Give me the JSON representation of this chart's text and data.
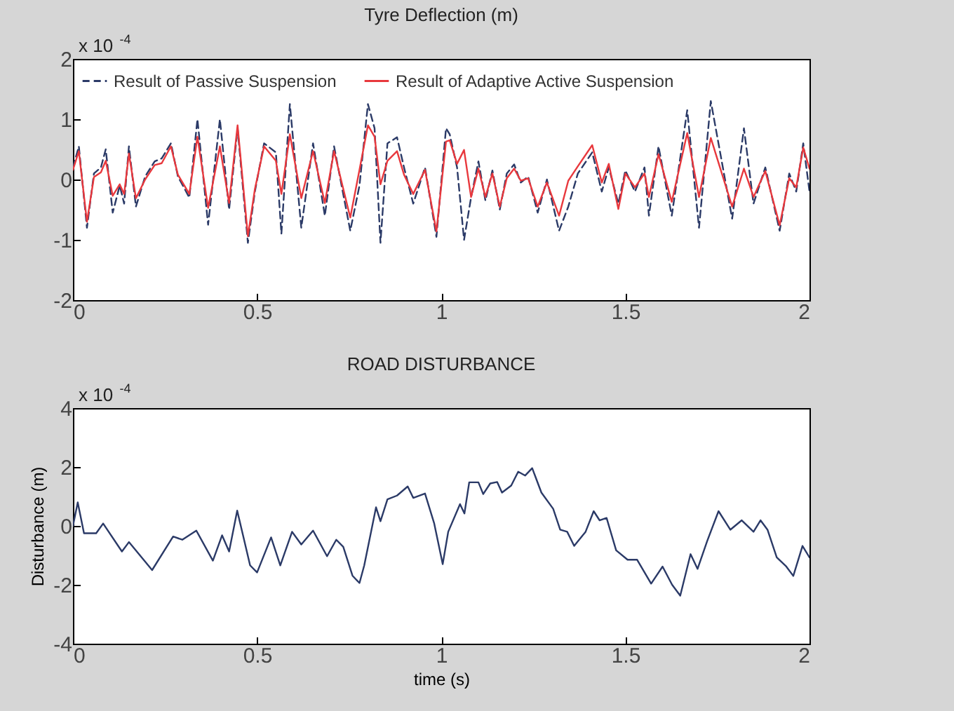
{
  "chart_data": [
    {
      "type": "line",
      "title": "Tyre Deflection (m)",
      "annotations": [
        "x 10$^{-4}$"
      ],
      "xlim": [
        0,
        2
      ],
      "xticks": [
        0,
        0.5,
        1,
        1.5,
        2
      ],
      "ylim": [
        -2,
        2
      ],
      "yticks": [
        -2,
        -1,
        0,
        1,
        2
      ],
      "grid": false,
      "legend": "top left",
      "x": [
        0,
        0.016,
        0.038,
        0.057,
        0.076,
        0.089,
        0.108,
        0.127,
        0.139,
        0.152,
        0.171,
        0.196,
        0.222,
        0.241,
        0.266,
        0.285,
        0.316,
        0.338,
        0.367,
        0.399,
        0.424,
        0.447,
        0.475,
        0.494,
        0.519,
        0.551,
        0.566,
        0.589,
        0.62,
        0.652,
        0.684,
        0.709,
        0.753,
        0.778,
        0.801,
        0.819,
        0.835,
        0.854,
        0.88,
        0.899,
        0.924,
        0.956,
        0.987,
        1.013,
        1.023,
        1.043,
        1.062,
        1.081,
        1.101,
        1.12,
        1.139,
        1.159,
        1.178,
        1.198,
        1.216,
        1.236,
        1.262,
        1.287,
        1.32,
        1.345,
        1.371,
        1.41,
        1.436,
        1.455,
        1.481,
        1.5,
        1.526,
        1.552,
        1.564,
        1.59,
        1.626,
        1.668,
        1.7,
        1.732,
        1.79,
        1.822,
        1.848,
        1.88,
        1.919,
        1.945,
        1.964,
        1.983,
        2.0
      ],
      "series": [
        {
          "name": "Result of Passive Suspension",
          "color": "#2b3a67",
          "line_style": "dashed",
          "values": [
            0.2,
            0.55,
            -0.8,
            0.1,
            0.2,
            0.5,
            -0.55,
            -0.1,
            -0.4,
            0.55,
            -0.45,
            0.05,
            0.3,
            0.35,
            0.6,
            0.05,
            -0.3,
            1.0,
            -0.75,
            1.0,
            -0.5,
            0.85,
            -1.05,
            -0.2,
            0.6,
            0.45,
            -0.9,
            1.25,
            -0.8,
            0.6,
            -0.6,
            0.55,
            -0.85,
            -0.1,
            1.25,
            0.85,
            -1.05,
            0.6,
            0.7,
            0.2,
            -0.4,
            0.2,
            -0.95,
            0.85,
            0.75,
            0.2,
            -1.0,
            -0.3,
            0.3,
            -0.35,
            0.15,
            -0.5,
            0.1,
            0.25,
            -0.05,
            0.05,
            -0.55,
            0.0,
            -0.85,
            -0.45,
            0.1,
            0.45,
            -0.2,
            0.2,
            -0.4,
            0.15,
            -0.2,
            0.2,
            -0.6,
            0.55,
            -0.6,
            1.15,
            -0.8,
            1.3,
            -0.65,
            0.85,
            -0.4,
            0.2,
            -0.85,
            0.1,
            -0.2,
            0.6,
            -0.2
          ]
        },
        {
          "name": "Result of Adaptive Active Suspension",
          "color": "#e8383d",
          "line_style": "solid",
          "values": [
            0.16,
            0.47,
            -0.7,
            0.04,
            0.12,
            0.31,
            -0.27,
            -0.08,
            -0.24,
            0.43,
            -0.31,
            0,
            0.24,
            0.27,
            0.55,
            0.08,
            -0.24,
            0.71,
            -0.47,
            0.55,
            -0.39,
            0.9,
            -0.94,
            -0.16,
            0.55,
            0.31,
            -0.24,
            0.75,
            -0.31,
            0.47,
            -0.39,
            0.47,
            -0.63,
            0.16,
            0.9,
            0.71,
            -0.08,
            0.31,
            0.47,
            0.08,
            -0.24,
            0.16,
            -0.86,
            0.63,
            0.65,
            0.26,
            0.49,
            -0.29,
            0.18,
            -0.29,
            0.1,
            -0.45,
            0.02,
            0.18,
            -0.02,
            0.02,
            -0.45,
            -0.05,
            -0.6,
            -0.02,
            0.22,
            0.57,
            -0.05,
            0.26,
            -0.49,
            0.1,
            -0.13,
            0.1,
            -0.29,
            0.42,
            -0.37,
            0.77,
            -0.29,
            0.69,
            -0.45,
            0.18,
            -0.29,
            0.14,
            -0.76,
            0.02,
            -0.13,
            0.53,
            0.18
          ]
        }
      ]
    },
    {
      "type": "line",
      "title": "ROAD DISTURBANCE",
      "xlabel": "time (s)",
      "ylabel": "Disturbance (m)",
      "annotations": [
        "x 10$^{-4}$"
      ],
      "xlim": [
        0,
        2
      ],
      "xticks": [
        0,
        0.5,
        1,
        1.5,
        2
      ],
      "ylim": [
        -4,
        4
      ],
      "yticks": [
        -4,
        -2,
        0,
        2,
        4
      ],
      "grid": false,
      "x": [
        0,
        0.013,
        0.03,
        0.063,
        0.082,
        0.133,
        0.152,
        0.215,
        0.272,
        0.297,
        0.335,
        0.38,
        0.405,
        0.424,
        0.446,
        0.481,
        0.5,
        0.538,
        0.563,
        0.595,
        0.62,
        0.652,
        0.69,
        0.715,
        0.734,
        0.759,
        0.778,
        0.791,
        0.823,
        0.835,
        0.854,
        0.88,
        0.909,
        0.924,
        0.956,
        0.981,
        1.004,
        1.019,
        1.051,
        1.063,
        1.076,
        1.101,
        1.114,
        1.133,
        1.152,
        1.165,
        1.19,
        1.209,
        1.228,
        1.247,
        1.272,
        1.304,
        1.323,
        1.342,
        1.361,
        1.392,
        1.414,
        1.43,
        1.449,
        1.475,
        1.506,
        1.532,
        1.57,
        1.601,
        1.627,
        1.649,
        1.677,
        1.696,
        1.722,
        1.753,
        1.785,
        1.816,
        1.848,
        1.867,
        1.886,
        1.911,
        1.937,
        1.956,
        1.981,
        2.0
      ],
      "series": [
        {
          "color": "#2b3a67",
          "line_style": "solid",
          "values": [
            0,
            0.8,
            -0.25,
            -0.25,
            0.08,
            -0.87,
            -0.55,
            -1.5,
            -0.36,
            -0.47,
            -0.16,
            -1.18,
            -0.32,
            -0.87,
            0.52,
            -1.34,
            -1.58,
            -0.39,
            -1.34,
            -0.2,
            -0.63,
            -0.16,
            -1.03,
            -0.47,
            -0.71,
            -1.69,
            -1.94,
            -1.34,
            0.63,
            0.16,
            0.9,
            1.03,
            1.34,
            0.95,
            1.1,
            0.08,
            -1.3,
            -0.2,
            0.74,
            0.42,
            1.48,
            1.48,
            1.08,
            1.44,
            1.49,
            1.13,
            1.37,
            1.84,
            1.71,
            1.96,
            1.13,
            0.58,
            -0.13,
            -0.2,
            -0.68,
            -0.2,
            0.5,
            0.19,
            0.27,
            -0.83,
            -1.15,
            -1.15,
            -1.96,
            -1.38,
            -2.0,
            -2.37,
            -0.96,
            -1.46,
            -0.52,
            0.5,
            -0.13,
            0.19,
            -0.2,
            0.19,
            -0.13,
            -1.07,
            -1.38,
            -1.7,
            -0.68,
            -1.07
          ]
        }
      ]
    }
  ]
}
